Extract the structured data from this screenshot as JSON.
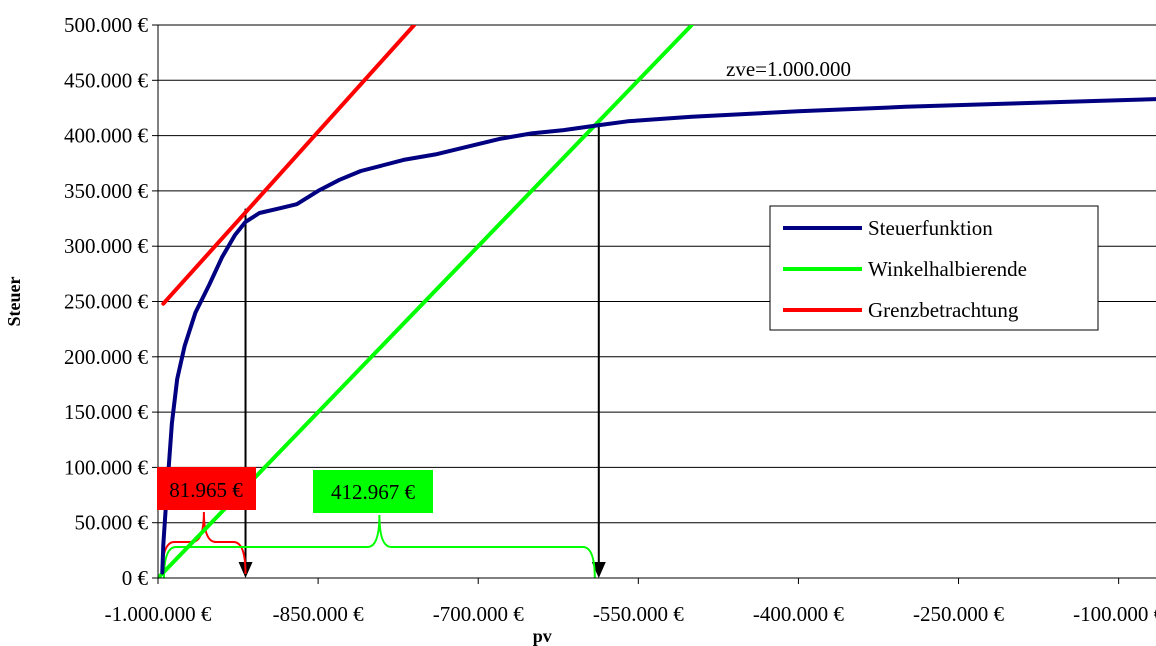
{
  "chart_data": {
    "type": "line",
    "xlabel": "pv",
    "ylabel": "Steuer",
    "xlim": [
      -1000000,
      -65000
    ],
    "ylim": [
      0,
      500000
    ],
    "grid": "horizontal",
    "legend_position": "right",
    "x_ticks": [
      {
        "value": -1000000,
        "label": "-1.000.000 €"
      },
      {
        "value": -850000,
        "label": "-850.000 €"
      },
      {
        "value": -700000,
        "label": "-700.000 €"
      },
      {
        "value": -550000,
        "label": "-550.000 €"
      },
      {
        "value": -400000,
        "label": "-400.000 €"
      },
      {
        "value": -250000,
        "label": "-250.000 €"
      },
      {
        "value": -100000,
        "label": "-100.000 €"
      }
    ],
    "y_ticks": [
      {
        "value": 0,
        "label": "0 €"
      },
      {
        "value": 50000,
        "label": "50.000 €"
      },
      {
        "value": 100000,
        "label": "100.000 €"
      },
      {
        "value": 150000,
        "label": "150.000 €"
      },
      {
        "value": 200000,
        "label": "200.000 €"
      },
      {
        "value": 250000,
        "label": "250.000 €"
      },
      {
        "value": 300000,
        "label": "300.000 €"
      },
      {
        "value": 350000,
        "label": "350.000 €"
      },
      {
        "value": 400000,
        "label": "400.000 €"
      },
      {
        "value": 450000,
        "label": "450.000 €"
      },
      {
        "value": 500000,
        "label": "500.000 €"
      }
    ],
    "series": [
      {
        "name": "Steuerfunktion",
        "color": "#000080",
        "x": [
          -996000,
          -995000,
          -993000,
          -990000,
          -987000,
          -982000,
          -975000,
          -965000,
          -952000,
          -940000,
          -928000,
          -918000,
          -905000,
          -887000,
          -870000,
          -850000,
          -830000,
          -810000,
          -790000,
          -770000,
          -740000,
          -710000,
          -680000,
          -650000,
          -620000,
          -590000,
          -560000,
          -530000,
          -500000,
          -400000,
          -300000,
          -200000,
          -100000,
          -65000
        ],
        "y": [
          5000,
          30000,
          60000,
          100000,
          140000,
          180000,
          210000,
          240000,
          265000,
          290000,
          310000,
          322000,
          330000,
          334000,
          338000,
          350000,
          360000,
          368000,
          373000,
          378000,
          383000,
          390000,
          397000,
          402000,
          405000,
          409000,
          412967,
          415000,
          417000,
          422000,
          426000,
          429000,
          432000,
          433000
        ]
      },
      {
        "name": "Winkelhalbierende",
        "color": "#00ff00",
        "x": [
          -1000000,
          -500000
        ],
        "y": [
          0,
          500000
        ]
      },
      {
        "name": "Grenzbetrachtung",
        "color": "#ff0000",
        "x": [
          -995000,
          -760000
        ],
        "y": [
          248000,
          500000
        ]
      }
    ],
    "annotations": [
      {
        "text": "zve=1.000.000",
        "x": -600000,
        "y": 462000
      },
      {
        "text": "81.965 €",
        "color": "#ff0000",
        "x": -1000000,
        "y": 81965,
        "from_x": -996000,
        "to_x": -918000
      },
      {
        "text": "412.967 €",
        "color": "#00ff00",
        "x": -587033,
        "y": 412967,
        "from_x": -1000000,
        "to_x": -587033
      }
    ],
    "arrows": [
      {
        "x": -918000,
        "y_from": 334000,
        "y_to": 0
      },
      {
        "x": -587033,
        "y_from": 412967,
        "y_to": 0
      }
    ]
  }
}
